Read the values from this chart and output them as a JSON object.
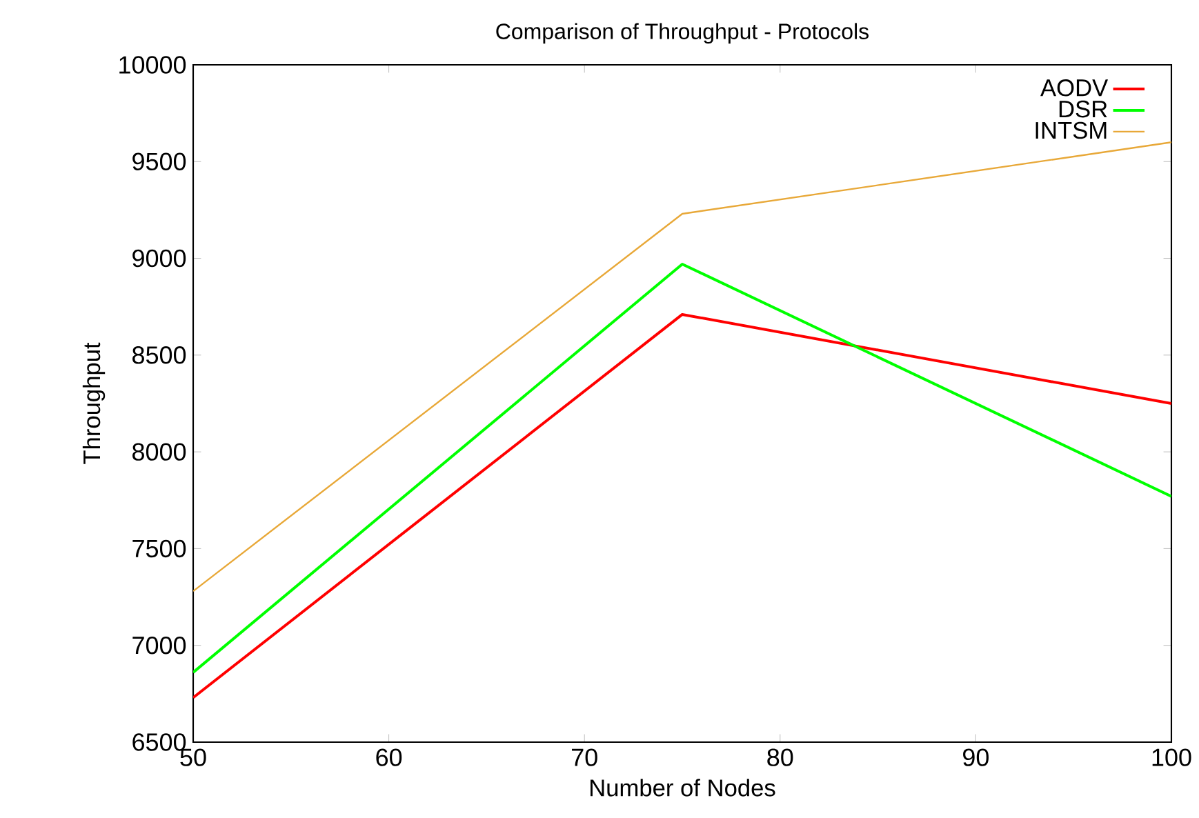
{
  "chart_data": {
    "type": "line",
    "title": "Comparison of Throughput - Protocols",
    "xlabel": "Number of Nodes",
    "ylabel": "Throughput",
    "x": [
      50,
      75,
      100
    ],
    "series": [
      {
        "name": "AODV",
        "color": "#ff0000",
        "values": [
          6730,
          8710,
          8250
        ]
      },
      {
        "name": "DSR",
        "color": "#00ff00",
        "values": [
          6860,
          8970,
          7770
        ]
      },
      {
        "name": "INTSM",
        "color": "#e8a838",
        "values": [
          7280,
          9230,
          9600
        ]
      }
    ],
    "xlim": [
      50,
      100
    ],
    "xticks": [
      50,
      60,
      70,
      80,
      90,
      100
    ],
    "ylim": [
      6500,
      10000
    ],
    "yticks": [
      6500,
      7000,
      7500,
      8000,
      8500,
      9000,
      9500,
      10000
    ],
    "grid": false,
    "legend": "top right",
    "marker": "none",
    "line_style": "solid"
  }
}
